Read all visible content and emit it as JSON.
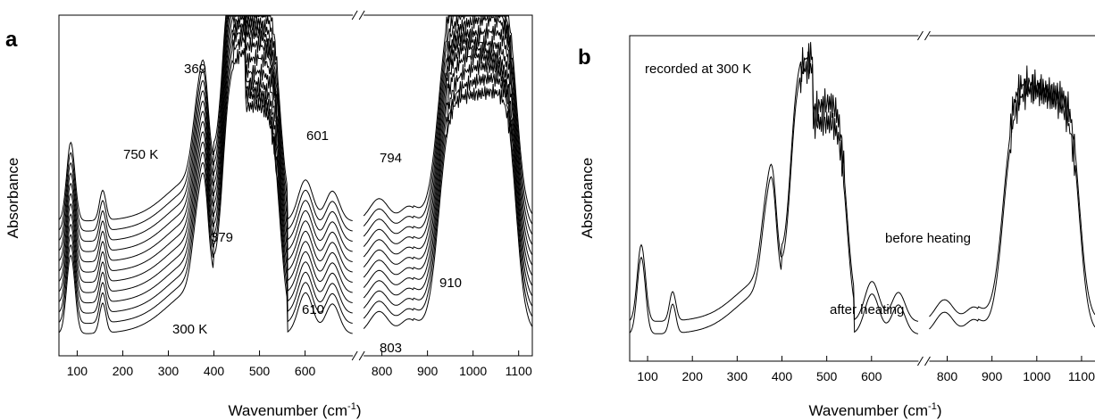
{
  "chart_data": [
    {
      "panel": "a",
      "type": "line",
      "xlabel": "Wavenumber (cm",
      "xlabel_sup": "-1",
      "xlabel_end": ")",
      "ylabel": "Absorbance",
      "xlim": [
        60,
        1130
      ],
      "axis_break": [
        705,
        760
      ],
      "xticks": [
        100,
        200,
        300,
        400,
        500,
        600,
        800,
        900,
        1000,
        1100
      ],
      "annotations": [
        "369",
        "750 K",
        "379",
        "300 K",
        "601",
        "610",
        "794",
        "803",
        "910"
      ],
      "series": [
        {
          "offset": 11
        },
        {
          "offset": 10
        },
        {
          "offset": 9
        },
        {
          "offset": 8
        },
        {
          "offset": 7
        },
        {
          "offset": 6
        },
        {
          "offset": 5
        },
        {
          "offset": 4
        },
        {
          "offset": 3
        },
        {
          "offset": 2
        },
        {
          "offset": 1
        },
        {
          "offset": 0
        }
      ]
    },
    {
      "panel": "b",
      "type": "line",
      "xlabel": "Wavenumber (cm",
      "xlabel_sup": "-1",
      "xlabel_end": ")",
      "ylabel": "Absorbance",
      "xlim": [
        60,
        1130
      ],
      "axis_break": [
        705,
        760
      ],
      "xticks": [
        100,
        200,
        300,
        400,
        500,
        600,
        800,
        900,
        1000,
        1100
      ],
      "annotations": [
        "recorded at 300 K",
        "before heating",
        "after heating"
      ],
      "series": [
        {
          "name": "before heating",
          "offset": 1
        },
        {
          "name": "after heating",
          "offset": 0
        }
      ]
    }
  ]
}
